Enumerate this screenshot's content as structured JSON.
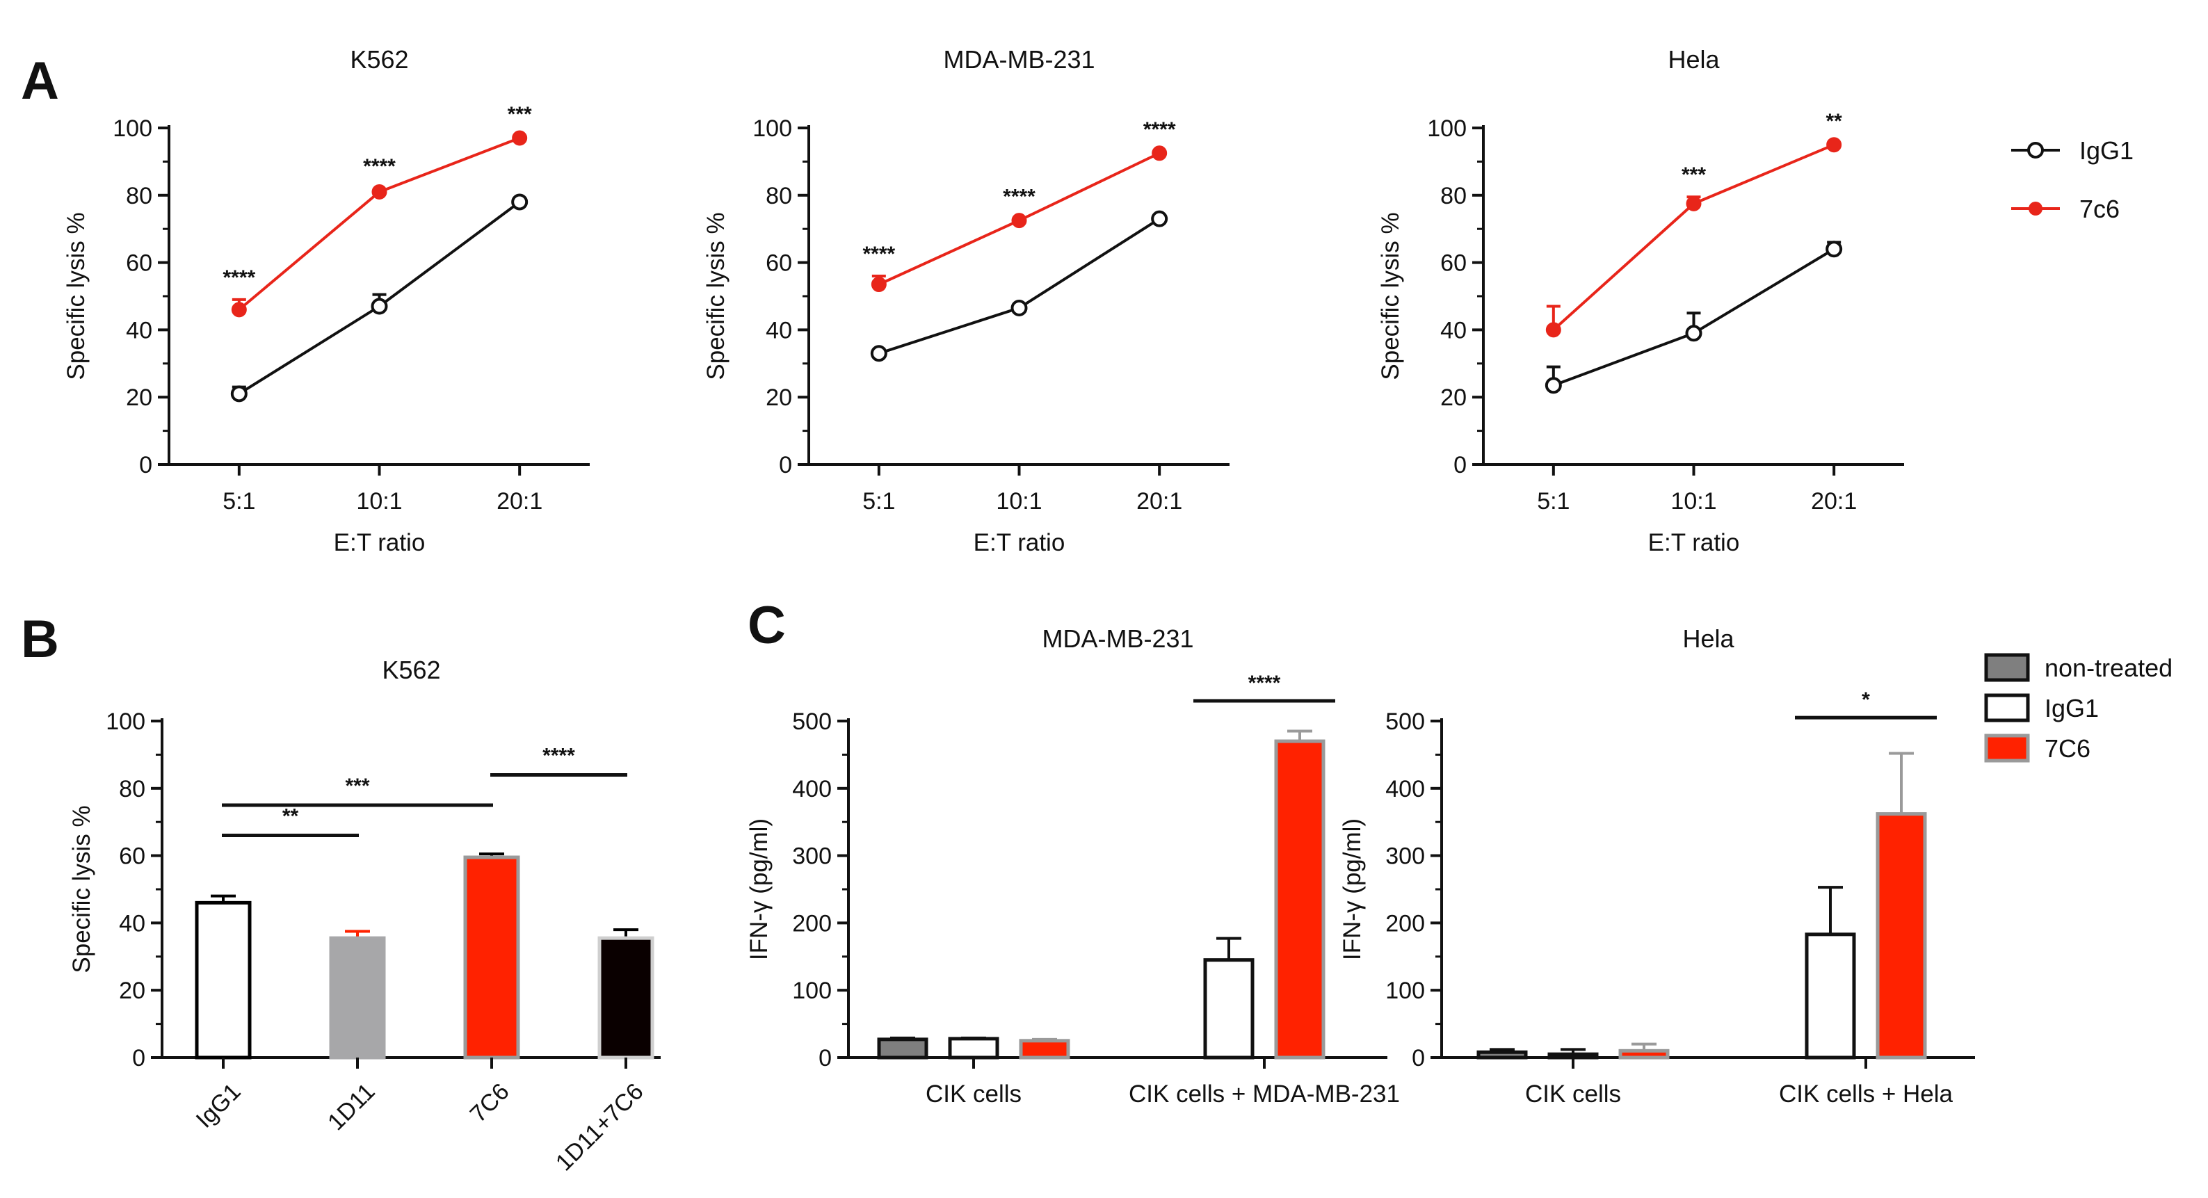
{
  "panels": {
    "A": "A",
    "B": "B",
    "C": "C"
  },
  "chart_data": [
    {
      "type": "line",
      "panel": "A",
      "title": "K562",
      "xlabel": "E:T ratio",
      "ylabel": "Specific lysis %",
      "ylim": [
        0,
        100
      ],
      "yticks": [
        "0",
        "20",
        "40",
        "60",
        "80",
        "100"
      ],
      "categories": [
        "5:1",
        "10:1",
        "20:1"
      ],
      "series": [
        {
          "name": "IgG1",
          "values": [
            21,
            47,
            78
          ],
          "errors": [
            2,
            3.5,
            1
          ],
          "color": "#111111",
          "marker": "open-circle"
        },
        {
          "name": "7c6",
          "values": [
            46,
            81,
            97
          ],
          "errors": [
            3,
            1,
            0.5
          ],
          "color": "#e8251a",
          "marker": "filled-circle"
        }
      ],
      "annotations": [
        "****",
        "****",
        "***"
      ]
    },
    {
      "type": "line",
      "panel": "A",
      "title": "MDA-MB-231",
      "xlabel": "E:T ratio",
      "ylabel": "Specific lysis %",
      "ylim": [
        0,
        100
      ],
      "yticks": [
        "0",
        "20",
        "40",
        "60",
        "80",
        "100"
      ],
      "categories": [
        "5:1",
        "10:1",
        "20:1"
      ],
      "series": [
        {
          "name": "IgG1",
          "values": [
            33,
            46.5,
            73
          ],
          "errors": [
            0.5,
            1,
            0.5
          ],
          "color": "#111111",
          "marker": "open-circle"
        },
        {
          "name": "7c6",
          "values": [
            53.5,
            72.5,
            92.5
          ],
          "errors": [
            2.5,
            0.5,
            0.5
          ],
          "color": "#e8251a",
          "marker": "filled-circle"
        }
      ],
      "annotations": [
        "****",
        "****",
        "****"
      ]
    },
    {
      "type": "line",
      "panel": "A",
      "title": "Hela",
      "xlabel": "E:T ratio",
      "ylabel": "Specific lysis %",
      "ylim": [
        0,
        100
      ],
      "yticks": [
        "0",
        "20",
        "40",
        "60",
        "80",
        "100"
      ],
      "categories": [
        "5:1",
        "10:1",
        "20:1"
      ],
      "series": [
        {
          "name": "IgG1",
          "values": [
            23.5,
            39,
            64
          ],
          "errors": [
            5.5,
            6,
            2
          ],
          "color": "#111111",
          "marker": "open-circle"
        },
        {
          "name": "7c6",
          "values": [
            40,
            77.5,
            95
          ],
          "errors": [
            7,
            2,
            0.5
          ],
          "color": "#e8251a",
          "marker": "filled-circle"
        }
      ],
      "annotations": [
        "",
        "***",
        "**"
      ]
    },
    {
      "type": "bar",
      "panel": "B",
      "title": "K562",
      "ylabel": "Specific lysis %",
      "ylim": [
        0,
        100
      ],
      "yticks": [
        "0",
        "20",
        "40",
        "60",
        "80",
        "100"
      ],
      "categories": [
        "IgG1",
        "1D11",
        "7C6",
        "1D11+7C6"
      ],
      "values": [
        46,
        35.5,
        59.5,
        35.5
      ],
      "errors": [
        2,
        2,
        1,
        2.5
      ],
      "colors": [
        "#ffffff",
        "#a7a7a9",
        "#ff2200",
        "#0a0000"
      ],
      "edge_colors": [
        "#000000",
        "#a7a7a9",
        "#9a9a9a",
        "#cfcfcf"
      ],
      "error_colors": [
        "#000000",
        "#ff2200",
        "#000000",
        "#000000"
      ],
      "significance": [
        {
          "from": 0,
          "to": 1,
          "level": 66,
          "label": "**"
        },
        {
          "from": 0,
          "to": 2,
          "level": 75,
          "label": "***"
        },
        {
          "from": 2,
          "to": 3,
          "level": 84,
          "label": "****"
        }
      ]
    },
    {
      "type": "bar",
      "panel": "C",
      "title": "MDA-MB-231",
      "ylabel": "IFN-γ (pg/ml)",
      "ylim": [
        0,
        500
      ],
      "yticks": [
        "0",
        "100",
        "200",
        "300",
        "400",
        "500"
      ],
      "groups": [
        "CIK cells",
        "CIK cells + MDA-MB-231"
      ],
      "series": [
        {
          "name": "non-treated",
          "values": [
            27,
            null
          ],
          "errors": [
            2,
            null
          ]
        },
        {
          "name": "IgG1",
          "values": [
            28,
            145
          ],
          "errors": [
            1,
            32
          ]
        },
        {
          "name": "7C6",
          "values": [
            25,
            470
          ],
          "errors": [
            2,
            15
          ]
        }
      ],
      "significance": [
        {
          "group": 1,
          "label": "****",
          "level": 530
        }
      ]
    },
    {
      "type": "bar",
      "panel": "C",
      "title": "Hela",
      "ylabel": "IFN-γ (pg/ml)",
      "ylim": [
        0,
        500
      ],
      "yticks": [
        "0",
        "100",
        "200",
        "300",
        "400",
        "500"
      ],
      "groups": [
        "CIK cells",
        "CIK cells + Hela"
      ],
      "series": [
        {
          "name": "non-treated",
          "values": [
            8,
            null
          ],
          "errors": [
            4,
            null
          ]
        },
        {
          "name": "IgG1",
          "values": [
            5,
            183
          ],
          "errors": [
            7,
            70
          ]
        },
        {
          "name": "7C6",
          "values": [
            10,
            362
          ],
          "errors": [
            10,
            90
          ]
        }
      ],
      "significance": [
        {
          "group": 1,
          "label": "*",
          "level": 505
        }
      ]
    }
  ],
  "legend_lines": [
    {
      "label": "IgG1",
      "color": "#111111",
      "marker": "open-circle"
    },
    {
      "label": "7c6",
      "color": "#e8251a",
      "marker": "filled-circle"
    }
  ],
  "legend_bars": [
    {
      "label": "non-treated",
      "fill": "#7f7f7f",
      "edge": "#111111"
    },
    {
      "label": "IgG1",
      "fill": "#ffffff",
      "edge": "#111111"
    },
    {
      "label": "7C6",
      "fill": "#ff2200",
      "edge": "#9a9a9a"
    }
  ]
}
